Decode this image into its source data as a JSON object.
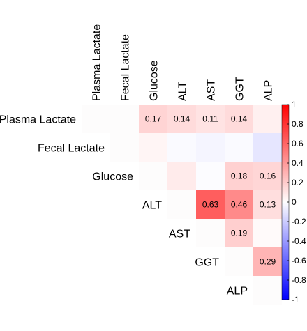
{
  "chart_data": {
    "type": "heatmap",
    "variables": [
      "Plasma Lactate",
      "Fecal Lactate",
      "Glucose",
      "ALT",
      "AST",
      "GGT",
      "ALP"
    ],
    "layout": "upper-triangle",
    "cells": [
      {
        "row": 0,
        "col": 0,
        "value": 0.0,
        "label": ""
      },
      {
        "row": 0,
        "col": 1,
        "value": 0.0,
        "label": ""
      },
      {
        "row": 0,
        "col": 2,
        "value": 0.17,
        "label": "0.17"
      },
      {
        "row": 0,
        "col": 3,
        "value": 0.14,
        "label": "0.14"
      },
      {
        "row": 0,
        "col": 4,
        "value": 0.11,
        "label": "0.11"
      },
      {
        "row": 0,
        "col": 5,
        "value": 0.14,
        "label": "0.14"
      },
      {
        "row": 0,
        "col": 6,
        "value": 0.06,
        "label": ""
      },
      {
        "row": 1,
        "col": 1,
        "value": 0.0,
        "label": ""
      },
      {
        "row": 1,
        "col": 2,
        "value": 0.04,
        "label": ""
      },
      {
        "row": 1,
        "col": 3,
        "value": -0.02,
        "label": ""
      },
      {
        "row": 1,
        "col": 4,
        "value": -0.04,
        "label": ""
      },
      {
        "row": 1,
        "col": 5,
        "value": -0.02,
        "label": ""
      },
      {
        "row": 1,
        "col": 6,
        "value": -0.1,
        "label": ""
      },
      {
        "row": 2,
        "col": 2,
        "value": 0.0,
        "label": ""
      },
      {
        "row": 2,
        "col": 3,
        "value": 0.08,
        "label": ""
      },
      {
        "row": 2,
        "col": 4,
        "value": -0.01,
        "label": ""
      },
      {
        "row": 2,
        "col": 5,
        "value": 0.18,
        "label": "0.18"
      },
      {
        "row": 2,
        "col": 6,
        "value": 0.16,
        "label": "0.16"
      },
      {
        "row": 3,
        "col": 3,
        "value": 0.0,
        "label": ""
      },
      {
        "row": 3,
        "col": 4,
        "value": 0.63,
        "label": "0.63"
      },
      {
        "row": 3,
        "col": 5,
        "value": 0.46,
        "label": "0.46"
      },
      {
        "row": 3,
        "col": 6,
        "value": 0.13,
        "label": "0.13"
      },
      {
        "row": 4,
        "col": 4,
        "value": 0.0,
        "label": ""
      },
      {
        "row": 4,
        "col": 5,
        "value": 0.19,
        "label": "0.19"
      },
      {
        "row": 4,
        "col": 6,
        "value": 0.02,
        "label": ""
      },
      {
        "row": 5,
        "col": 5,
        "value": 0.0,
        "label": ""
      },
      {
        "row": 5,
        "col": 6,
        "value": 0.29,
        "label": "0.29"
      },
      {
        "row": 6,
        "col": 6,
        "value": 0.0,
        "label": ""
      }
    ],
    "colorbar": {
      "range": [
        -1,
        1
      ],
      "ticks": [
        "1",
        "0.8",
        "0.6",
        "0.4",
        "0.2",
        "0",
        "-0.2",
        "-0.4",
        "-0.6",
        "-0.8",
        "-1"
      ],
      "colors": {
        "low": "#0000ff",
        "mid": "#ffffff",
        "high": "#ff0000"
      }
    },
    "grid": false,
    "legend_placement": "right"
  }
}
